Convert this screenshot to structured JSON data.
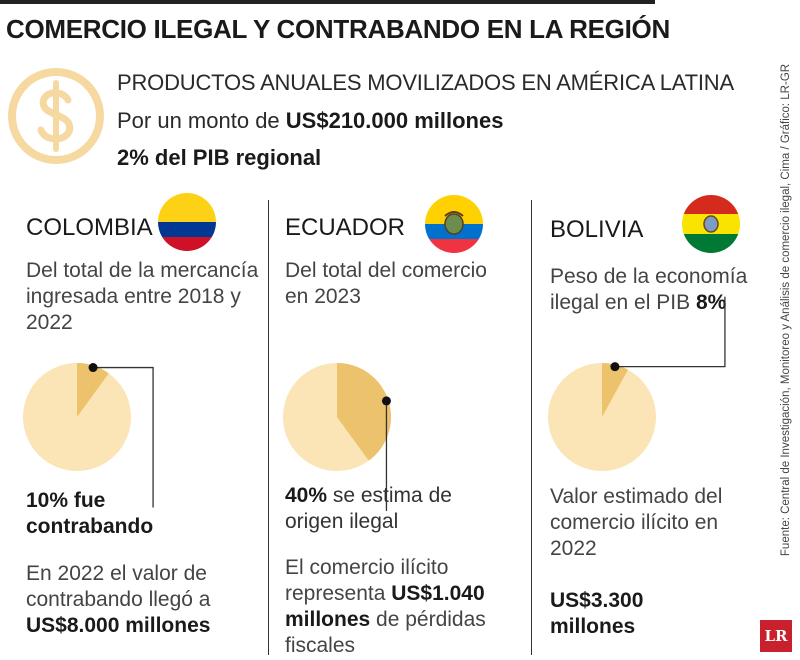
{
  "header": {
    "title": "COMERCIO ILEGAL Y CONTRABANDO EN LA REGIÓN",
    "subtitle": "PRODUCTOS ANUALES MOVILIZADOS EN AMÉRICA LATINA",
    "amount_prefix": "Por un monto de ",
    "amount_value": "US$210.000 millones",
    "pib_text": "2% del PIB regional"
  },
  "source": "Fuente: Central de Investigación, Monitoreo y Análisis de comercio ilegal, Cima / Gráfico: LR-GR",
  "logo": "LR",
  "colors": {
    "pie_base": "#fbe4b6",
    "pie_slice": "#ecc26c",
    "coin": "#f6d9a0"
  },
  "chart_data": [
    {
      "type": "pie",
      "country": "COLOMBIA",
      "lead": "Del total de la mercancía ingresada entre 2018 y 2022",
      "slice_percent": 10,
      "pct_bold": "10% fue contrabando",
      "foot_text": "En 2022 el valor de contrabando llegó a",
      "foot_bold": "US$8.000 millones"
    },
    {
      "type": "pie",
      "country": "ECUADOR",
      "lead": "Del total del comercio en 2023",
      "slice_percent": 40,
      "pct_bold": "40%",
      "pct_text": " se estima de origen ilegal",
      "foot_pre": "El comercio ilícito representa ",
      "foot_bold": "US$1.040 millones",
      "foot_post": " de pérdidas fiscales"
    },
    {
      "type": "pie",
      "country": "BOLIVIA",
      "lead": "Peso de la economía ilegal en el PIB ",
      "lead_bold": "8%",
      "slice_percent": 8,
      "foot_text": "Valor estimado del comercio ilícito en 2022",
      "big_value": "US$3.300 millones"
    }
  ]
}
